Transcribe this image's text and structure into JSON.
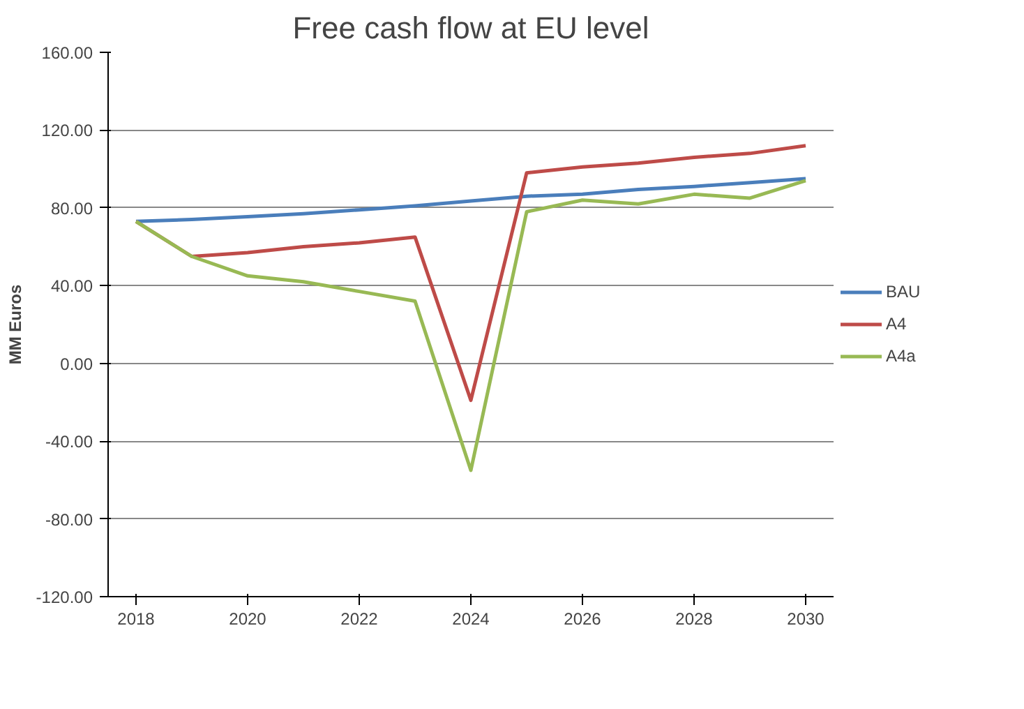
{
  "chart_data": {
    "type": "line",
    "title": "Free cash flow at EU level",
    "ylabel": "MM Euros",
    "x": [
      2018,
      2019,
      2020,
      2021,
      2022,
      2023,
      2024,
      2025,
      2026,
      2027,
      2028,
      2029,
      2030
    ],
    "xlim": [
      2017.5,
      2030.5
    ],
    "xticks": [
      2018,
      2020,
      2022,
      2024,
      2026,
      2028,
      2030
    ],
    "ylim": [
      -120,
      160
    ],
    "yticks": [
      {
        "value": -120,
        "label": "-120.00"
      },
      {
        "value": -80,
        "label": "-80.00"
      },
      {
        "value": -40,
        "label": "-40.00"
      },
      {
        "value": 0,
        "label": "0.00"
      },
      {
        "value": 40,
        "label": "40.00"
      },
      {
        "value": 80,
        "label": "80.00"
      },
      {
        "value": 120,
        "label": "120.00"
      },
      {
        "value": 160,
        "label": "160.00"
      }
    ],
    "series": [
      {
        "name": "BAU",
        "color": "#4a7ebb",
        "values": [
          73,
          74,
          75.5,
          77,
          79,
          81,
          83.5,
          86,
          87,
          89.5,
          91,
          93,
          95
        ]
      },
      {
        "name": "A4",
        "color": "#be4b48",
        "values": [
          73,
          55,
          57,
          60,
          62,
          65,
          -19,
          98,
          101,
          103,
          106,
          108,
          112
        ]
      },
      {
        "name": "A4a",
        "color": "#98b954",
        "values": [
          73,
          55,
          45,
          42,
          37,
          32,
          -55,
          78,
          84,
          82,
          87,
          85,
          94
        ]
      }
    ],
    "grid": "y",
    "legend": "right",
    "marker": "none",
    "line_style": "solid"
  }
}
